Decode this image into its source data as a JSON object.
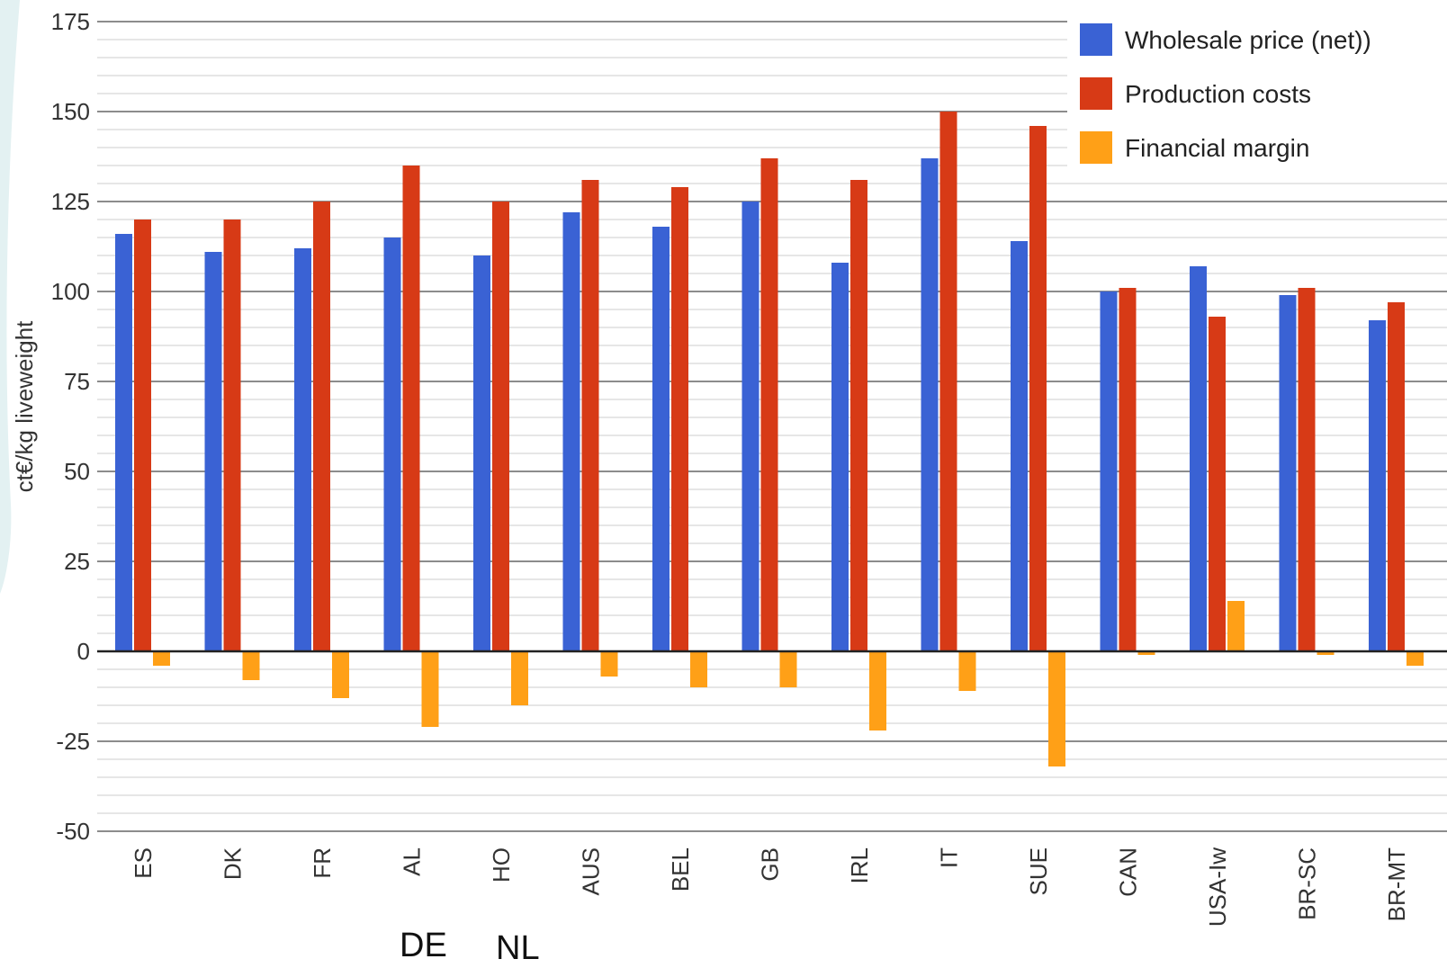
{
  "chart_data": {
    "type": "bar",
    "categories": [
      "ES",
      "DK",
      "FR",
      "AL",
      "HO",
      "AUS",
      "BEL",
      "GB",
      "IRL",
      "IT",
      "SUE",
      "CAN",
      "USA-Iw",
      "BR-SC",
      "BR-MT"
    ],
    "series": [
      {
        "name": "Wholesale price (net))",
        "color": "#3a62d4",
        "values": [
          116,
          111,
          112,
          115,
          110,
          122,
          118,
          125,
          108,
          137,
          114,
          100,
          107,
          99,
          92
        ]
      },
      {
        "name": "Production costs",
        "color": "#d73a16",
        "values": [
          120,
          120,
          125,
          135,
          125,
          131,
          129,
          137,
          131,
          150,
          146,
          101,
          93,
          101,
          97
        ]
      },
      {
        "name": "Financial margin",
        "color": "#ffa017",
        "values": [
          -4,
          -8,
          -13,
          -21,
          -15,
          -7,
          -10,
          -10,
          -22,
          -11,
          -32,
          -1,
          14,
          -1,
          -4
        ]
      }
    ],
    "ylabel": "ct€/kg liveweight",
    "xlabel": "",
    "ylim": [
      -50,
      175
    ],
    "yticks": [
      -50,
      -25,
      0,
      25,
      50,
      75,
      100,
      125,
      150,
      175
    ],
    "grid": true,
    "legend_position": "top-right",
    "annotations": [
      "DE",
      "NL"
    ]
  }
}
